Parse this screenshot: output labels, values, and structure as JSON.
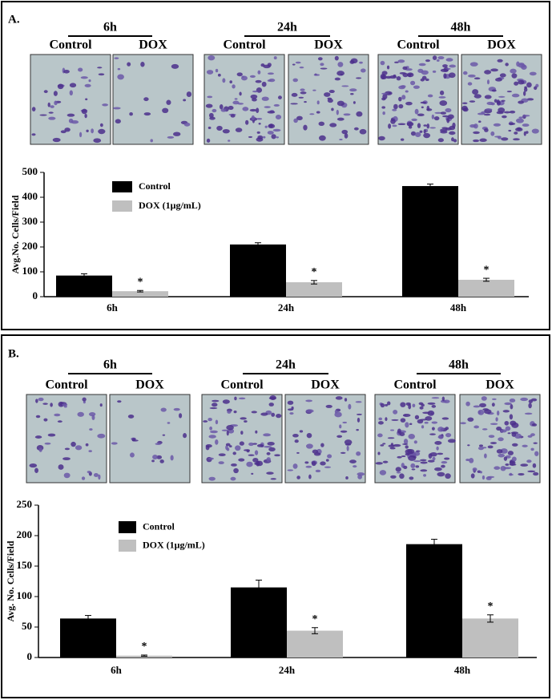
{
  "panels": [
    {
      "label": "A.",
      "groups": [
        {
          "time": "6h",
          "conditions": [
            "Control",
            "DOX"
          ]
        },
        {
          "time": "24h",
          "conditions": [
            "Control",
            "DOX"
          ]
        },
        {
          "time": "48h",
          "conditions": [
            "Control",
            "DOX"
          ]
        }
      ]
    },
    {
      "label": "B.",
      "groups": [
        {
          "time": "6h",
          "conditions": [
            "Control",
            "DOX"
          ]
        },
        {
          "time": "24h",
          "conditions": [
            "Control",
            "DOX"
          ]
        },
        {
          "time": "48h",
          "conditions": [
            "Control",
            "DOX"
          ]
        }
      ]
    }
  ],
  "chart_data": [
    {
      "type": "bar",
      "y_label": "Avg.No. Cells/Field",
      "categories": [
        "6h",
        "24h",
        "48h"
      ],
      "ylim": [
        0,
        500
      ],
      "yticks": [
        0,
        100,
        200,
        300,
        400,
        500
      ],
      "legend": "upper-left",
      "series": [
        {
          "name": "Control",
          "color": "#000000",
          "values": [
            85,
            210,
            445
          ],
          "errors": [
            7,
            7,
            8
          ]
        },
        {
          "name": "DOX (1μg/mL)",
          "color": "#bfbfbf",
          "values": [
            22,
            58,
            68
          ],
          "errors": [
            3,
            7,
            6
          ],
          "significance": [
            "*",
            "*",
            "*"
          ]
        }
      ]
    },
    {
      "type": "bar",
      "y_label": "Avg. No. Cells/Field",
      "categories": [
        "6h",
        "24h",
        "48h"
      ],
      "ylim": [
        0,
        250
      ],
      "yticks": [
        0,
        50,
        100,
        150,
        200,
        250
      ],
      "legend": "upper-left",
      "series": [
        {
          "name": "Control",
          "color": "#000000",
          "values": [
            64,
            115,
            186
          ],
          "errors": [
            5,
            12,
            8
          ]
        },
        {
          "name": "DOX (1μg/mL)",
          "color": "#bfbfbf",
          "values": [
            3,
            44,
            64
          ],
          "errors": [
            1,
            5,
            6
          ],
          "significance": [
            "*",
            "*",
            "*"
          ]
        }
      ]
    }
  ]
}
